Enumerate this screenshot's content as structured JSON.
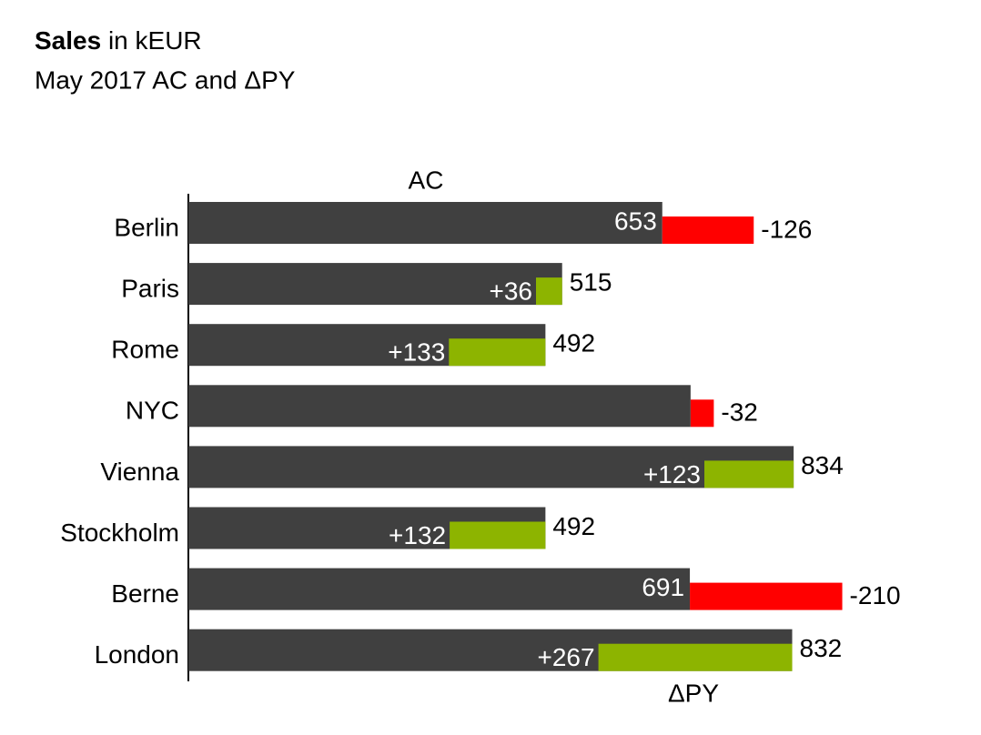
{
  "chart_data": {
    "type": "variance-bar",
    "title": {
      "bold": "Sales",
      "rest": "in kEUR"
    },
    "subtitle": "May 2017 AC and ΔPY",
    "categories": [
      "Berlin",
      "Paris",
      "Rome",
      "NYC",
      "Vienna",
      "Stockholm",
      "Berne",
      "London"
    ],
    "series": [
      {
        "name": "AC",
        "color": "#404040",
        "values": [
          653,
          515,
          492,
          692,
          834,
          492,
          691,
          832
        ],
        "value_labels": [
          "653",
          "515",
          "492",
          null,
          "834",
          "492",
          "691",
          "832"
        ]
      },
      {
        "name": "ΔPY",
        "positive_color": "#8db400",
        "negative_color": "#ff0000",
        "values": [
          -126,
          36,
          133,
          -32,
          123,
          132,
          -210,
          267
        ],
        "value_labels": [
          "-126",
          "+36",
          "+133",
          "-32",
          "+123",
          "+132",
          "-210",
          "+267"
        ]
      }
    ]
  }
}
